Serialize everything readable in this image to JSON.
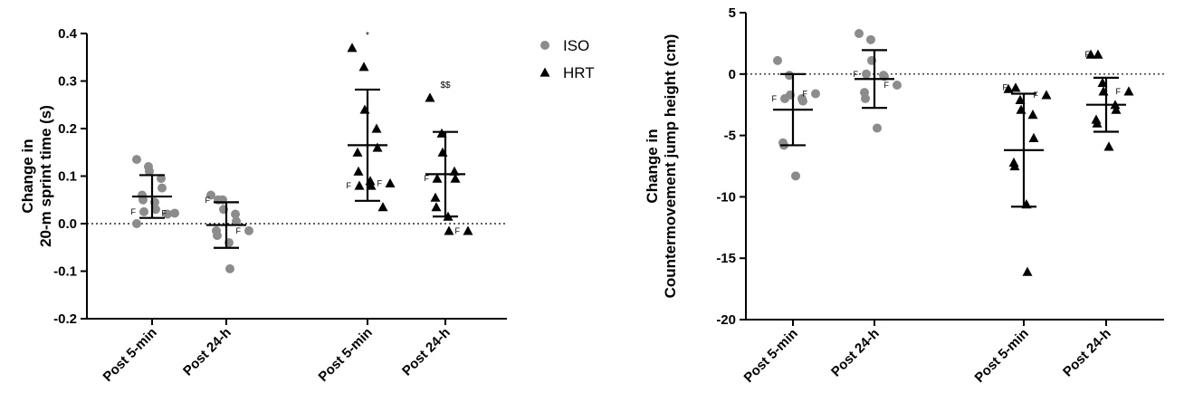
{
  "colors": {
    "iso": "#8c8c8c",
    "hrt": "#000000",
    "axis": "#000000",
    "zero_line": "#000000"
  },
  "chart_data": [
    {
      "type": "scatter",
      "ylabel_lines": [
        "Change in",
        "20-m sprint time (s)"
      ],
      "ylim": [
        -0.2,
        0.4
      ],
      "yticks": [
        -0.2,
        -0.1,
        0.0,
        0.1,
        0.2,
        0.3,
        0.4
      ],
      "ytick_labels": [
        "-0.2",
        "-0.1",
        "0.0",
        "0.1",
        "0.2",
        "0.3",
        "0.4"
      ],
      "zero_line": "dotted",
      "legend": {
        "placement": "top-right",
        "entries": [
          {
            "label": "ISO",
            "marker": "circle"
          },
          {
            "label": "HRT",
            "marker": "triangle"
          }
        ]
      },
      "groups": [
        {
          "category": "Post 5-min",
          "series": "ISO",
          "mean": 0.057,
          "sd": 0.045,
          "points": [
            0.135,
            0.12,
            0.11,
            0.095,
            0.075,
            0.06,
            0.05,
            0.045,
            0.03,
            0.02,
            0.0
          ],
          "marked": [
            {
              "value": 0.025,
              "label": "F"
            },
            {
              "value": 0.022,
              "label": "F"
            }
          ]
        },
        {
          "category": "Post 24-h",
          "series": "ISO",
          "mean": -0.003,
          "sd": 0.048,
          "points": [
            0.06,
            0.05,
            0.03,
            0.02,
            0.005,
            -0.015,
            -0.025,
            -0.04,
            -0.095
          ],
          "marked": [
            {
              "value": 0.05,
              "label": "F"
            },
            {
              "value": -0.015,
              "label": "F"
            }
          ]
        },
        {
          "category": "Post 5-min",
          "series": "HRT",
          "mean": 0.165,
          "sd": 0.117,
          "annotation": "*",
          "points": [
            0.37,
            0.33,
            0.24,
            0.2,
            0.16,
            0.15,
            0.11,
            0.09,
            0.08,
            0.035
          ],
          "marked": [
            {
              "value": 0.08,
              "label": "F"
            },
            {
              "value": 0.085,
              "label": "F"
            }
          ]
        },
        {
          "category": "Post 24-h",
          "series": "HRT",
          "mean": 0.104,
          "sd": 0.089,
          "annotation": "$$",
          "points": [
            0.265,
            0.19,
            0.15,
            0.11,
            0.095,
            0.055,
            0.035,
            0.015,
            -0.015
          ],
          "marked": [
            {
              "value": 0.095,
              "label": "F"
            },
            {
              "value": -0.015,
              "label": "F"
            }
          ]
        }
      ]
    },
    {
      "type": "scatter",
      "ylabel_lines": [
        "Change in",
        "Countermovement jump height (cm)"
      ],
      "ylim": [
        -20,
        5
      ],
      "yticks": [
        -20,
        -15,
        -10,
        -5,
        0,
        5
      ],
      "ytick_labels": [
        "-20",
        "-15",
        "-10",
        "-5",
        "0",
        "5"
      ],
      "zero_line": "dotted",
      "groups": [
        {
          "category": "Post 5-min",
          "series": "ISO",
          "mean": -2.9,
          "sd": 2.9,
          "points": [
            1.1,
            -0.1,
            -1.7,
            -2.0,
            -2.2,
            -5.6,
            -5.8,
            -8.3
          ],
          "marked": [
            {
              "value": -2.0,
              "label": "F"
            },
            {
              "value": -1.6,
              "label": "F"
            }
          ]
        },
        {
          "category": "Post 24-h",
          "series": "ISO",
          "mean": -0.4,
          "sd": 2.35,
          "points": [
            3.3,
            2.8,
            1.1,
            -0.1,
            -0.2,
            -1.5,
            -2.0,
            -4.4
          ],
          "marked": [
            {
              "value": 0.0,
              "label": "F"
            },
            {
              "value": -0.9,
              "label": "F"
            }
          ]
        },
        {
          "category": "Post 5-min",
          "series": "HRT",
          "mean": -6.2,
          "sd": 4.6,
          "points": [
            -1.2,
            -2.1,
            -2.9,
            -3.3,
            -5.2,
            -7.2,
            -7.5,
            -10.6,
            -16.1
          ],
          "marked": [
            {
              "value": -1.1,
              "label": "F"
            },
            {
              "value": -1.7,
              "label": "F"
            }
          ]
        },
        {
          "category": "Post 24-h",
          "series": "HRT",
          "mean": -2.5,
          "sd": 2.2,
          "points": [
            1.6,
            -0.7,
            -1.4,
            -2.5,
            -2.9,
            -3.7,
            -4.0,
            -5.9
          ],
          "marked": [
            {
              "value": 1.6,
              "label": "F"
            },
            {
              "value": -1.4,
              "label": "F"
            }
          ]
        }
      ]
    }
  ]
}
